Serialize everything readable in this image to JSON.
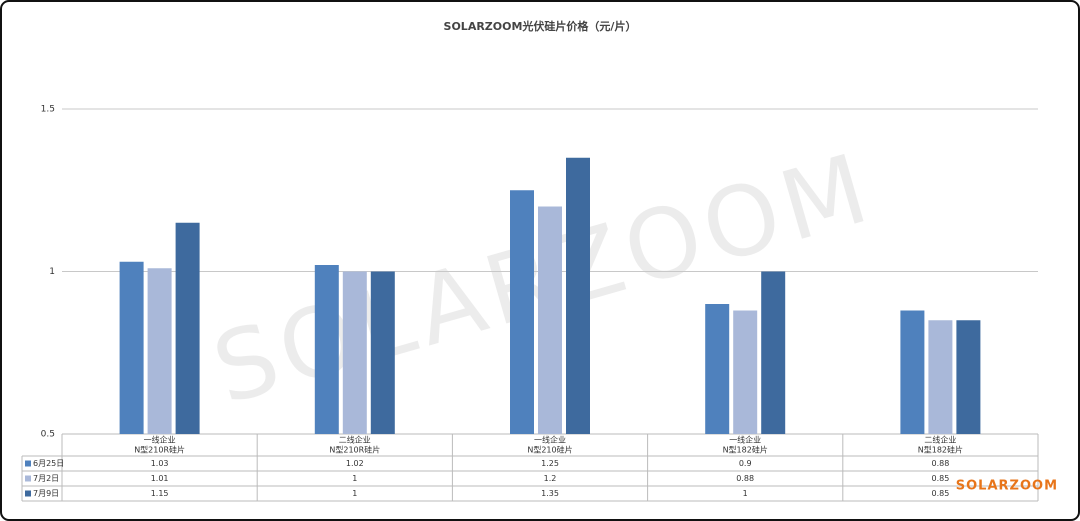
{
  "chart_data": {
    "type": "bar",
    "title": "SOLARZOOM光伏硅片价格（元/片）",
    "categories": [
      [
        "一线企业",
        "N型210R硅片"
      ],
      [
        "二线企业",
        "N型210R硅片"
      ],
      [
        "一线企业",
        "N型210硅片"
      ],
      [
        "一线企业",
        "N型182硅片"
      ],
      [
        "二线企业",
        "N型182硅片"
      ]
    ],
    "series": [
      {
        "name": "6月25日",
        "color": "#4f81bd",
        "values": [
          1.03,
          1.02,
          1.25,
          0.9,
          0.88
        ]
      },
      {
        "name": "7月2日",
        "color": "#a9b8d9",
        "values": [
          1.01,
          1,
          1.2,
          0.88,
          0.85
        ]
      },
      {
        "name": "7月9日",
        "color": "#3e6a9e",
        "values": [
          1.15,
          1,
          1.35,
          1,
          0.85
        ]
      }
    ],
    "ylim": [
      0.5,
      1.7
    ],
    "yticks": [
      0.5,
      1,
      1.5
    ],
    "grid": true,
    "watermark": "SOLARZOOM",
    "logo": "SOLARZOOM"
  }
}
